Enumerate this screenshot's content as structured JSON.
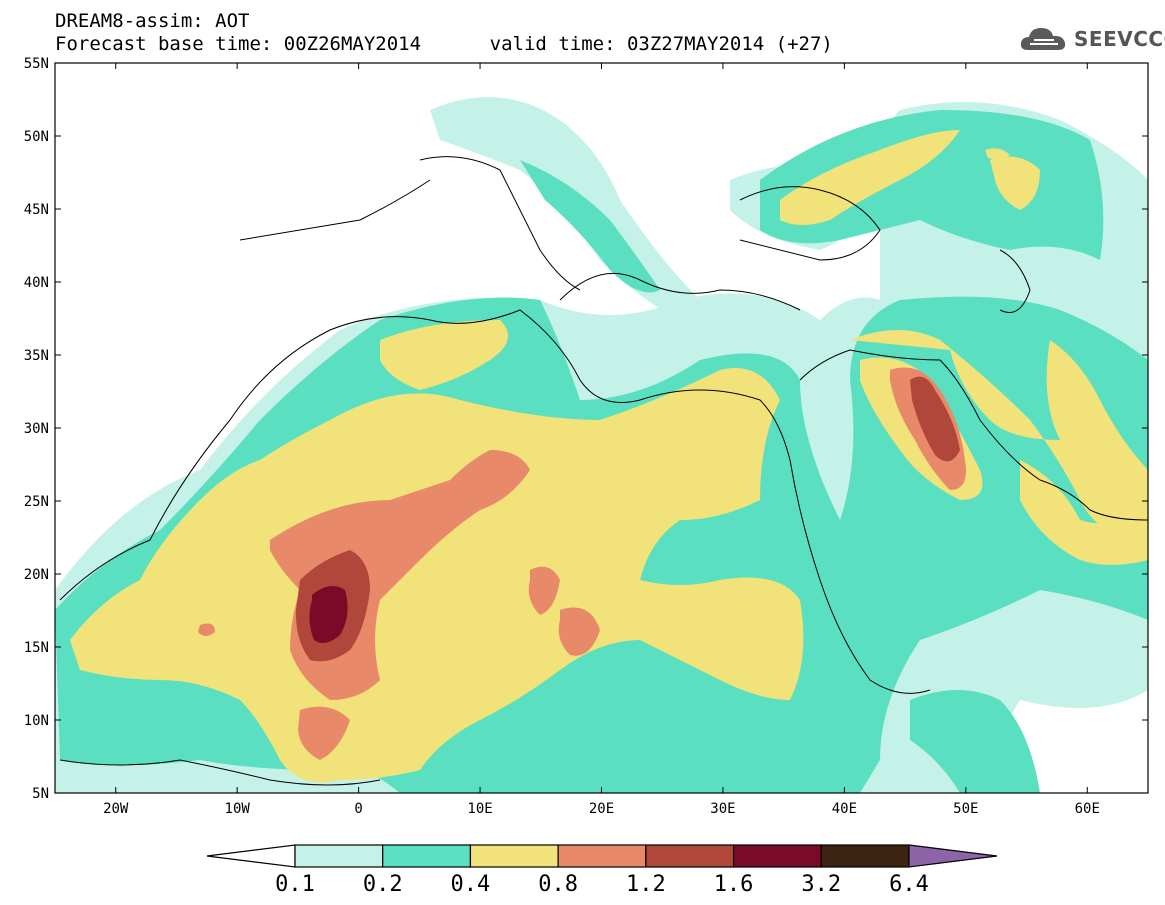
{
  "header": {
    "line1": "DREAM8-assim: AOT",
    "line2": "Forecast base time: 00Z26MAY2014      valid time: 03Z27MAY2014 (+27)"
  },
  "logo": {
    "text": "SEEVCCC",
    "icon": "cloud-icon"
  },
  "map": {
    "lon_range": [
      -25,
      65
    ],
    "lat_range": [
      5,
      55
    ],
    "lat_ticks": [
      "5N",
      "10N",
      "15N",
      "20N",
      "25N",
      "30N",
      "35N",
      "40N",
      "45N",
      "50N",
      "55N"
    ],
    "lon_ticks": [
      "20W",
      "10W",
      "0",
      "10E",
      "20E",
      "30E",
      "40E",
      "50E",
      "60E"
    ]
  },
  "legend": {
    "labels": [
      "0.1",
      "0.2",
      "0.4",
      "0.8",
      "1.2",
      "1.6",
      "3.2",
      "6.4"
    ],
    "colors": [
      "#ffffff",
      "#c4f2e8",
      "#5ae0c0",
      "#f2e27a",
      "#e8896a",
      "#b0473a",
      "#7a0a28",
      "#3d2412",
      "#8e64a8"
    ]
  }
}
